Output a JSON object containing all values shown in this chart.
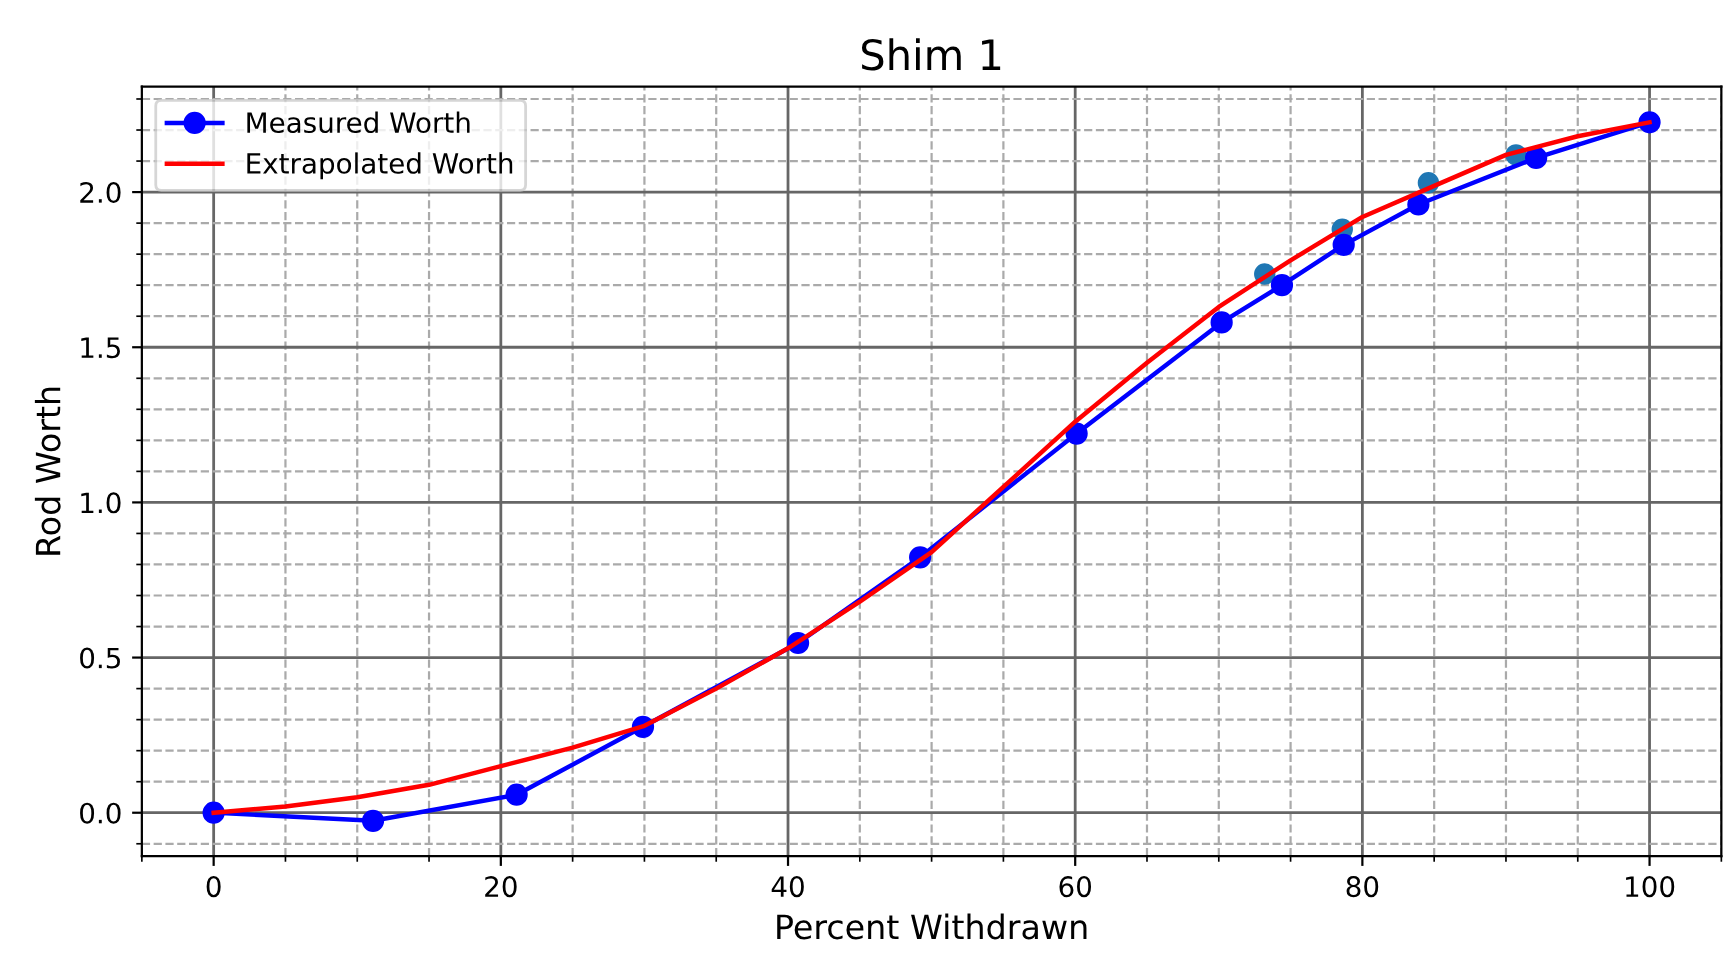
{
  "chart_data": {
    "type": "line",
    "title": "Shim 1",
    "xlabel": "Percent Withdrawn",
    "ylabel": "Rod Worth",
    "xlim": [
      -5,
      105
    ],
    "xticks": [
      0,
      20,
      40,
      60,
      80,
      100
    ],
    "ylim": [
      -0.14,
      2.34
    ],
    "yticks": [
      {
        "value": 0,
        "label": "0.0"
      },
      0.5,
      {
        "value": 1,
        "label": "1.0"
      },
      1.5,
      {
        "value": 2,
        "label": "2.0"
      }
    ],
    "grid": true,
    "legend": "top left",
    "series": [
      {
        "name": "Measured Worth",
        "color": "#0000ff",
        "marker": "circle",
        "x": [
          0,
          11.1,
          21.1,
          29.9,
          40.7,
          49.2,
          60.1,
          70.2,
          74.4,
          78.7,
          83.9,
          92.1,
          100
        ],
        "values": [
          0,
          -0.026,
          0.058,
          0.277,
          0.547,
          0.823,
          1.222,
          1.58,
          1.7,
          1.83,
          1.96,
          2.11,
          2.225
        ]
      },
      {
        "name": "Extrapolated Worth",
        "color": "#ff0000",
        "marker": "none",
        "x": [
          0,
          5,
          10,
          15,
          20,
          25,
          30,
          35,
          40,
          45,
          50,
          55,
          60,
          65,
          70,
          75,
          80,
          85,
          90,
          95,
          100
        ],
        "values": [
          0,
          0.02,
          0.05,
          0.09,
          0.15,
          0.21,
          0.28,
          0.4,
          0.53,
          0.68,
          0.84,
          1.05,
          1.26,
          1.45,
          1.63,
          1.78,
          1.92,
          2.02,
          2.12,
          2.18,
          2.225
        ]
      },
      {
        "type": "scatter",
        "color": "#1f77b4",
        "marker": "circle",
        "x": [
          73.2,
          78.6,
          84.6,
          90.7
        ],
        "values": [
          1.736,
          1.88,
          2.03,
          2.12
        ]
      }
    ]
  }
}
